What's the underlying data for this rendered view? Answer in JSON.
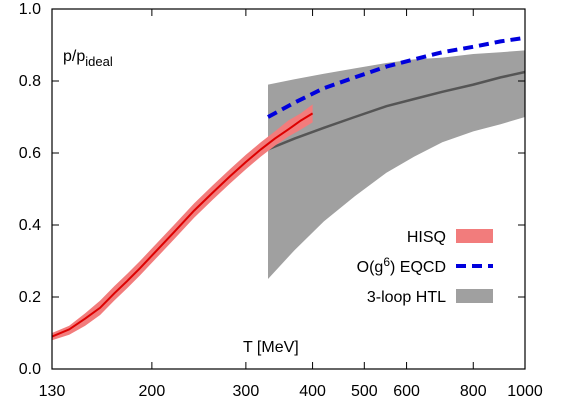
{
  "chart_data": {
    "type": "line",
    "title": "",
    "xlabel": "T [MeV]",
    "ylabel": "p/p",
    "ylabel_sub": "ideal",
    "x_scale": "log",
    "xlim": [
      130,
      1000
    ],
    "ylim": [
      0.0,
      1.0
    ],
    "x_ticks": [
      130,
      200,
      300,
      400,
      500,
      600,
      800,
      1000
    ],
    "x_tick_labels": [
      "130",
      "200",
      "300",
      "400",
      "500",
      "600",
      "800",
      "1000"
    ],
    "y_ticks": [
      0.0,
      0.2,
      0.4,
      0.6,
      0.8,
      1.0
    ],
    "y_tick_labels": [
      "0.0",
      "0.2",
      "0.4",
      "0.6",
      "0.8",
      "1.0"
    ],
    "grid": false,
    "legend_position": "lower-right",
    "series": [
      {
        "name": "HISQ",
        "kind": "band",
        "color": "#f27c7c",
        "line_color": "#dd0000",
        "x": [
          130,
          140,
          150,
          160,
          170,
          180,
          190,
          200,
          220,
          240,
          260,
          280,
          300,
          320,
          340,
          360,
          380,
          400
        ],
        "y": [
          0.09,
          0.11,
          0.14,
          0.17,
          0.21,
          0.245,
          0.28,
          0.315,
          0.38,
          0.44,
          0.49,
          0.535,
          0.575,
          0.61,
          0.64,
          0.665,
          0.69,
          0.71
        ],
        "y_low": [
          0.08,
          0.095,
          0.12,
          0.15,
          0.19,
          0.225,
          0.26,
          0.295,
          0.36,
          0.42,
          0.47,
          0.515,
          0.555,
          0.59,
          0.62,
          0.645,
          0.665,
          0.685
        ],
        "y_high": [
          0.1,
          0.12,
          0.155,
          0.19,
          0.23,
          0.265,
          0.3,
          0.335,
          0.4,
          0.46,
          0.51,
          0.555,
          0.595,
          0.63,
          0.66,
          0.69,
          0.71,
          0.735
        ]
      },
      {
        "name": "O(g⁶) EQCD",
        "legend_base": "O(g",
        "legend_sup": "6",
        "legend_rest": ") EQCD",
        "kind": "dashed",
        "color": "#0000dd",
        "x": [
          330,
          370,
          420,
          480,
          550,
          620,
          700,
          800,
          900,
          1000
        ],
        "y": [
          0.7,
          0.74,
          0.78,
          0.81,
          0.84,
          0.86,
          0.88,
          0.895,
          0.91,
          0.92
        ]
      },
      {
        "name": "3-loop HTL",
        "kind": "band",
        "color": "#a0a0a0",
        "line_color": "#555555",
        "x": [
          330,
          370,
          420,
          480,
          550,
          620,
          700,
          800,
          900,
          1000
        ],
        "y": [
          0.61,
          0.64,
          0.67,
          0.7,
          0.73,
          0.75,
          0.77,
          0.79,
          0.81,
          0.825
        ],
        "y_low": [
          0.25,
          0.33,
          0.41,
          0.48,
          0.545,
          0.59,
          0.63,
          0.66,
          0.68,
          0.7
        ],
        "y_high": [
          0.79,
          0.805,
          0.82,
          0.835,
          0.85,
          0.86,
          0.865,
          0.875,
          0.88,
          0.885
        ]
      }
    ]
  }
}
